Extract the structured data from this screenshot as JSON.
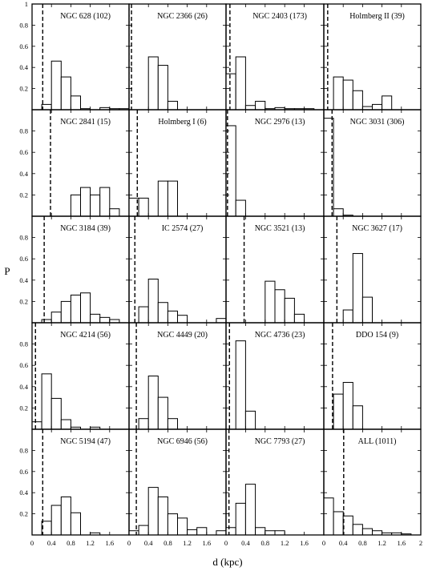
{
  "chart_data": {
    "type": "bar",
    "layout": "small-multiples 5 rows x 4 columns, shared axes",
    "xlabel": "d (kpc)",
    "ylabel": "P",
    "xlim": [
      0,
      2
    ],
    "ylim": [
      0,
      1
    ],
    "bin_width": 0.2,
    "x_ticks": [
      "0",
      "0.4",
      "0.8",
      "1.2",
      "1.6"
    ],
    "x_ticks_last_column": [
      "0",
      "0.4",
      "0.8",
      "1.2",
      "1.6",
      "2"
    ],
    "y_ticks": [
      "0.2",
      "0.4",
      "0.6",
      "0.8"
    ],
    "y_ticks_top": [
      "0.2",
      "0.4",
      "0.6",
      "0.8",
      "1"
    ],
    "dashed_line": "vertical dashed line per panel",
    "panels": [
      {
        "title": "NGC 628 (102)",
        "dashed_x": 0.22,
        "bars": [
          0,
          0.05,
          0.46,
          0.31,
          0.13,
          0.01,
          0,
          0.02,
          0.01,
          0.01
        ]
      },
      {
        "title": "NGC 2366 (26)",
        "dashed_x": 0.05,
        "bars": [
          0,
          0,
          0.5,
          0.42,
          0.08,
          0,
          0,
          0,
          0,
          0
        ]
      },
      {
        "title": "NGC 2403 (173)",
        "dashed_x": 0.08,
        "bars": [
          0.34,
          0.5,
          0.04,
          0.08,
          0.01,
          0.02,
          0.01,
          0.01,
          0.01,
          0
        ]
      },
      {
        "title": "Holmberg II (39)",
        "dashed_x": 0.08,
        "bars": [
          0,
          0.31,
          0.28,
          0.18,
          0.03,
          0.05,
          0.13,
          0,
          0,
          0
        ]
      },
      {
        "title": "NGC 2841 (15)",
        "dashed_x": 0.38,
        "bars": [
          0,
          0,
          0,
          0,
          0.2,
          0.27,
          0.2,
          0.27,
          0.07,
          0
        ]
      },
      {
        "title": "Holmberg I (6)",
        "dashed_x": 0.17,
        "bars": [
          0.17,
          0.17,
          0,
          0.33,
          0.33,
          0,
          0,
          0,
          0,
          0
        ]
      },
      {
        "title": "NGC 2976 (13)",
        "dashed_x": 0.03,
        "bars": [
          0.85,
          0.15,
          0,
          0,
          0,
          0,
          0,
          0,
          0,
          0
        ]
      },
      {
        "title": "NGC 3031 (306)",
        "dashed_x": 0.17,
        "bars": [
          0.92,
          0.07,
          0.01,
          0,
          0,
          0,
          0,
          0,
          0,
          0
        ]
      },
      {
        "title": "NGC 3184 (39)",
        "dashed_x": 0.25,
        "bars": [
          0,
          0.03,
          0.1,
          0.2,
          0.26,
          0.28,
          0.08,
          0.05,
          0.03,
          0
        ]
      },
      {
        "title": "IC 2574 (27)",
        "dashed_x": 0.12,
        "bars": [
          0,
          0.15,
          0.41,
          0.19,
          0.11,
          0.07,
          0,
          0,
          0,
          0.04
        ]
      },
      {
        "title": "NGC 3521 (13)",
        "dashed_x": 0.37,
        "bars": [
          0,
          0,
          0,
          0,
          0.39,
          0.31,
          0.23,
          0.08,
          0,
          0
        ]
      },
      {
        "title": "NGC 3627 (17)",
        "dashed_x": 0.27,
        "bars": [
          0,
          0,
          0.12,
          0.65,
          0.24,
          0,
          0,
          0,
          0,
          0
        ]
      },
      {
        "title": "NGC 4214 (56)",
        "dashed_x": 0.07,
        "bars": [
          0.07,
          0.52,
          0.29,
          0.09,
          0.02,
          0,
          0.02,
          0,
          0,
          0
        ]
      },
      {
        "title": "NGC 4449 (20)",
        "dashed_x": 0.15,
        "bars": [
          0,
          0.1,
          0.5,
          0.3,
          0.1,
          0,
          0,
          0,
          0,
          0
        ]
      },
      {
        "title": "NGC 4736 (23)",
        "dashed_x": 0.07,
        "bars": [
          0,
          0.83,
          0.17,
          0,
          0,
          0,
          0,
          0,
          0,
          0
        ]
      },
      {
        "title": "DDO 154 (9)",
        "dashed_x": 0.18,
        "bars": [
          0,
          0.33,
          0.44,
          0.22,
          0,
          0,
          0,
          0,
          0,
          0
        ]
      },
      {
        "title": "NGC 5194 (47)",
        "dashed_x": 0.22,
        "bars": [
          0,
          0.13,
          0.28,
          0.36,
          0.21,
          0,
          0.02,
          0,
          0,
          0
        ]
      },
      {
        "title": "NGC 6946 (56)",
        "dashed_x": 0.15,
        "bars": [
          0.04,
          0.09,
          0.45,
          0.36,
          0.2,
          0.16,
          0.05,
          0.07,
          0,
          0.04
        ]
      },
      {
        "title": "NGC 7793 (27)",
        "dashed_x": 0.06,
        "bars": [
          0.07,
          0.3,
          0.48,
          0.07,
          0.04,
          0.04,
          0,
          0,
          0,
          0
        ]
      },
      {
        "title": "ALL (1011)",
        "dashed_x": 0.41,
        "bars": [
          0.35,
          0.22,
          0.18,
          0.1,
          0.06,
          0.04,
          0.02,
          0.02,
          0.01,
          0
        ]
      }
    ]
  }
}
